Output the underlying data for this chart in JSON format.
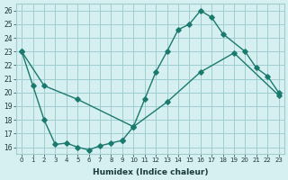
{
  "line1_x": [
    0,
    1,
    2,
    3,
    4,
    5,
    6,
    7,
    8,
    9
  ],
  "line1_y": [
    23.0,
    20.5,
    18.0,
    16.2,
    16.3,
    16.0,
    15.8,
    16.1,
    16.3,
    16.5
  ],
  "line2_x": [
    9,
    10,
    11,
    12,
    13,
    14,
    15,
    16,
    17,
    18,
    20,
    21,
    22,
    23
  ],
  "line2_y": [
    16.5,
    17.5,
    19.5,
    21.5,
    23.0,
    24.6,
    25.0,
    26.0,
    25.5,
    24.3,
    23.0,
    21.8,
    21.2,
    20.0
  ],
  "line3_x": [
    0,
    2,
    5,
    10,
    13,
    16,
    19,
    23
  ],
  "line3_y": [
    23.0,
    20.5,
    19.5,
    17.5,
    19.3,
    21.5,
    22.9,
    19.8
  ],
  "color": "#1a7a6e",
  "bg_color": "#d6eff0",
  "grid_color": "#a0cdd0",
  "xlabel": "Humidex (Indice chaleur)",
  "xlim": [
    -0.5,
    23.5
  ],
  "ylim": [
    15.5,
    26.5
  ],
  "yticks": [
    16,
    17,
    18,
    19,
    20,
    21,
    22,
    23,
    24,
    25,
    26
  ],
  "xticks": [
    0,
    1,
    2,
    3,
    4,
    5,
    6,
    7,
    8,
    9,
    10,
    11,
    12,
    13,
    14,
    15,
    16,
    17,
    18,
    19,
    20,
    21,
    22,
    23
  ]
}
